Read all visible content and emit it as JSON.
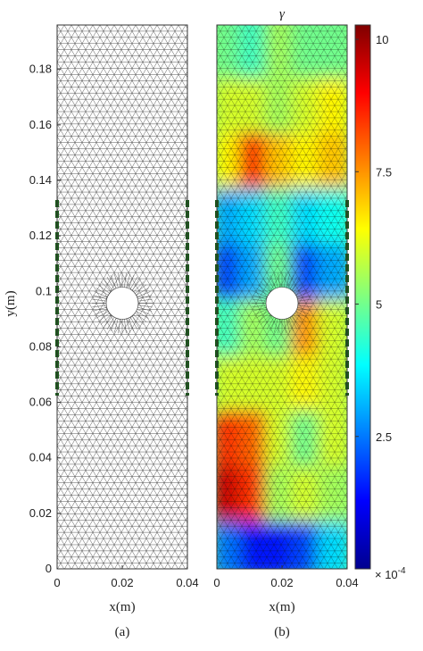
{
  "chart_data": [
    {
      "type": "mesh",
      "xlabel": "x(m)",
      "ylabel": "y(m)",
      "panel_label": "(a)",
      "xlim": [
        0,
        0.04
      ],
      "xticks": [
        0,
        0.02,
        0.04
      ],
      "ylim": [
        0,
        0.196
      ],
      "yticks": [
        0,
        0.02,
        0.04,
        0.06,
        0.08,
        0.1,
        0.12,
        0.14,
        0.16,
        0.18
      ]
    },
    {
      "type": "heatmap",
      "title": "γ",
      "xlabel": "x(m)",
      "panel_label": "(b)",
      "xlim": [
        0,
        0.04
      ],
      "xticks": [
        0,
        0.02,
        0.04
      ],
      "ylim": [
        0,
        0.196
      ],
      "grid_x": [
        0.004,
        0.012,
        0.02,
        0.028,
        0.036
      ],
      "grid_y": [
        0.01,
        0.03,
        0.05,
        0.07,
        0.09,
        0.11,
        0.13,
        0.15,
        0.17,
        0.19
      ],
      "values": [
        [
          2.5,
          1.5,
          1.5,
          2,
          3.5
        ],
        [
          9.5,
          8.5,
          5.5,
          6,
          5.5
        ],
        [
          8.5,
          8,
          6,
          5,
          6
        ],
        [
          6,
          6,
          6,
          6.5,
          6
        ],
        [
          4.5,
          5.5,
          5,
          7.5,
          6
        ],
        [
          2,
          3,
          5,
          2,
          3
        ],
        [
          3,
          3.5,
          4.5,
          3.5,
          4
        ],
        [
          6.5,
          8.5,
          7,
          6.5,
          7
        ],
        [
          6,
          6,
          5.5,
          6,
          6.5
        ],
        [
          5,
          4.5,
          5.5,
          5,
          5
        ]
      ],
      "clim": [
        0,
        10.27
      ],
      "cticks": [
        2.5,
        5,
        7.5,
        10
      ],
      "colorbar_scale": "× 10",
      "colorbar_exponent": "-4"
    }
  ]
}
